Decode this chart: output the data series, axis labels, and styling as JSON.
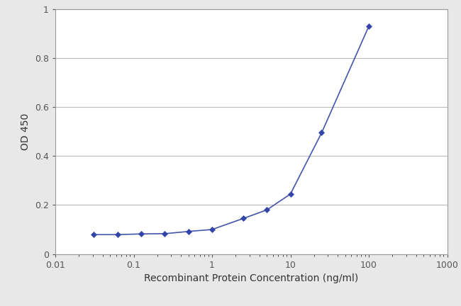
{
  "x_values": [
    0.031,
    0.063,
    0.125,
    0.25,
    0.5,
    1.0,
    2.5,
    5.0,
    10.0,
    25.0,
    100.0
  ],
  "y_values": [
    0.079,
    0.079,
    0.082,
    0.083,
    0.092,
    0.1,
    0.145,
    0.18,
    0.245,
    0.495,
    0.93
  ],
  "line_color": "#4455aa",
  "marker_color": "#3344aa",
  "marker": "D",
  "marker_size": 4,
  "line_width": 1.2,
  "xlabel": "Recombinant Protein Concentration (ng/ml)",
  "ylabel": "OD 450",
  "xlim": [
    0.01,
    1000
  ],
  "ylim": [
    0,
    1.0
  ],
  "yticks": [
    0,
    0.2,
    0.4,
    0.6,
    0.8,
    1.0
  ],
  "background_color": "#e8e8e8",
  "plot_bg_color": "#ffffff",
  "grid_color": "#bbbbbb",
  "xlabel_fontsize": 10,
  "ylabel_fontsize": 10,
  "tick_fontsize": 9,
  "xlabel_color": "#333333",
  "ylabel_color": "#333333",
  "tick_color": "#555555"
}
